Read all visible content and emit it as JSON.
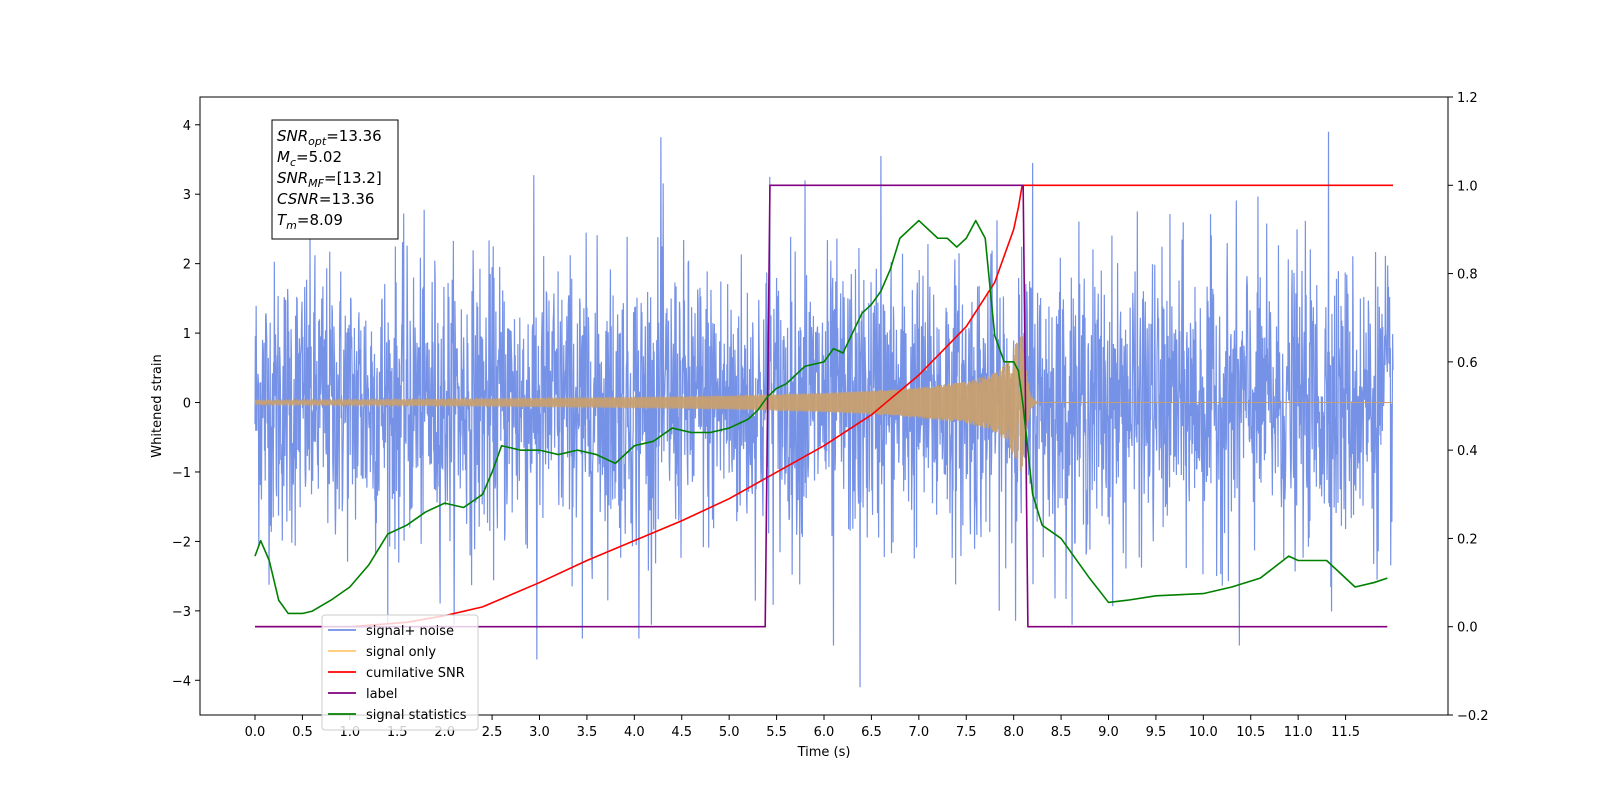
{
  "chart_data": {
    "type": "line",
    "xlabel": "Time (s)",
    "ylabel": "Whitened strain",
    "xlim": [
      -0.58,
      12.58
    ],
    "ylim_left": [
      -4.5,
      4.4
    ],
    "ylim_right": [
      -0.2,
      1.2
    ],
    "x_ticks": [
      "0.0",
      "0.5",
      "1.0",
      "1.5",
      "2.0",
      "2.5",
      "3.0",
      "3.5",
      "4.0",
      "4.5",
      "5.0",
      "5.5",
      "6.0",
      "6.5",
      "7.0",
      "7.5",
      "8.0",
      "8.5",
      "9.0",
      "9.5",
      "10.0",
      "10.5",
      "11.0",
      "11.5"
    ],
    "y_ticks_left": [
      "4",
      "3",
      "2",
      "1",
      "0",
      "−1",
      "−2",
      "−3",
      "−4"
    ],
    "y_ticks_right": [
      "1.2",
      "1.0",
      "0.8",
      "0.6",
      "0.4",
      "0.2",
      "0.0",
      "−0.2"
    ],
    "annotation": {
      "lines": [
        {
          "sym": "SNR",
          "sub": "opt",
          "rest": "=13.36"
        },
        {
          "sym": "M",
          "sub": "c",
          "rest": "=5.02"
        },
        {
          "sym": "SNR",
          "sub": "MF",
          "rest": "=[13.2]"
        },
        {
          "sym": "CSNR",
          "sub": "",
          "rest": "=13.36"
        },
        {
          "sym": "T",
          "sub": "m",
          "rest": "=8.09"
        }
      ]
    },
    "legend": {
      "placement": "lower-left",
      "entries": [
        {
          "label": "signal+ noise",
          "color": "#6f8ce6"
        },
        {
          "label": "signal only",
          "color": "#ffc870"
        },
        {
          "label": "cumilative SNR",
          "color": "#ff0000"
        },
        {
          "label": "label",
          "color": "#800080"
        },
        {
          "label": "signal statistics",
          "color": "#008000"
        }
      ]
    },
    "series": [
      {
        "name": "signal+ noise",
        "axis": "left",
        "color": "#6f8ce6",
        "x_range": [
          0.0,
          12.0
        ],
        "kind": "noise",
        "std": 1.0,
        "extremes": [
          [
            4.28,
            3.82
          ],
          [
            11.32,
            3.9
          ],
          [
            6.38,
            -4.1
          ],
          [
            2.97,
            -3.7
          ],
          [
            3.45,
            -3.4
          ],
          [
            10.38,
            -3.5
          ],
          [
            4.05,
            -3.4
          ],
          [
            6.1,
            -3.5
          ],
          [
            5.43,
            3.25
          ],
          [
            6.6,
            3.55
          ],
          [
            8.2,
            3.45
          ],
          [
            5.8,
            3.2
          ]
        ]
      },
      {
        "name": "signal only",
        "axis": "left",
        "color": "#c8a070",
        "kind": "chirp",
        "x_range": [
          0.0,
          12.0
        ],
        "merger_time": 8.09,
        "envelope": [
          [
            0.0,
            0.03
          ],
          [
            1.0,
            0.04
          ],
          [
            2.0,
            0.05
          ],
          [
            3.0,
            0.065
          ],
          [
            4.0,
            0.08
          ],
          [
            5.0,
            0.1
          ],
          [
            5.5,
            0.12
          ],
          [
            6.0,
            0.14
          ],
          [
            6.5,
            0.17
          ],
          [
            7.0,
            0.22
          ],
          [
            7.5,
            0.3
          ],
          [
            7.8,
            0.42
          ],
          [
            7.95,
            0.6
          ],
          [
            8.05,
            0.95
          ],
          [
            8.09,
            1.05
          ],
          [
            8.12,
            0.6
          ],
          [
            8.18,
            0.1
          ],
          [
            8.25,
            0.0
          ]
        ]
      },
      {
        "name": "cumilative SNR",
        "axis": "right",
        "color": "#ff0000",
        "x": [
          0.0,
          1.0,
          1.6,
          2.0,
          2.4,
          3.0,
          3.5,
          4.0,
          4.5,
          5.0,
          5.5,
          6.0,
          6.5,
          7.0,
          7.5,
          7.8,
          8.0,
          8.05,
          8.09,
          8.1,
          12.0
        ],
        "y": [
          0.0,
          0.0,
          0.01,
          0.025,
          0.045,
          0.1,
          0.15,
          0.195,
          0.24,
          0.29,
          0.35,
          0.41,
          0.48,
          0.57,
          0.68,
          0.78,
          0.9,
          0.95,
          1.0,
          1.0,
          1.0
        ]
      },
      {
        "name": "label",
        "axis": "right",
        "color": "#800080",
        "x": [
          0.0,
          5.38,
          5.43,
          8.1,
          8.15,
          11.94
        ],
        "y": [
          0.0,
          0.0,
          1.0,
          1.0,
          0.0,
          0.0
        ]
      },
      {
        "name": "signal statistics",
        "axis": "right",
        "color": "#008000",
        "x": [
          0.0,
          0.06,
          0.15,
          0.25,
          0.35,
          0.5,
          0.6,
          0.8,
          1.0,
          1.2,
          1.4,
          1.6,
          1.8,
          2.0,
          2.2,
          2.4,
          2.5,
          2.6,
          2.8,
          3.0,
          3.2,
          3.4,
          3.6,
          3.8,
          4.0,
          4.2,
          4.4,
          4.6,
          4.8,
          5.0,
          5.2,
          5.3,
          5.4,
          5.5,
          5.6,
          5.7,
          5.8,
          6.0,
          6.1,
          6.2,
          6.4,
          6.5,
          6.6,
          6.7,
          6.8,
          7.0,
          7.2,
          7.3,
          7.4,
          7.5,
          7.6,
          7.7,
          7.8,
          7.9,
          8.0,
          8.05,
          8.1,
          8.2,
          8.3,
          8.5,
          8.8,
          9.0,
          9.2,
          9.5,
          10.0,
          10.3,
          10.6,
          10.9,
          11.0,
          11.3,
          11.6,
          11.8,
          11.94
        ],
        "y": [
          0.16,
          0.195,
          0.15,
          0.06,
          0.03,
          0.03,
          0.035,
          0.06,
          0.09,
          0.14,
          0.21,
          0.23,
          0.26,
          0.28,
          0.27,
          0.3,
          0.35,
          0.41,
          0.4,
          0.4,
          0.39,
          0.4,
          0.39,
          0.37,
          0.41,
          0.42,
          0.45,
          0.44,
          0.44,
          0.45,
          0.47,
          0.49,
          0.52,
          0.54,
          0.55,
          0.57,
          0.59,
          0.6,
          0.63,
          0.62,
          0.71,
          0.73,
          0.76,
          0.81,
          0.88,
          0.92,
          0.88,
          0.88,
          0.86,
          0.88,
          0.92,
          0.88,
          0.66,
          0.6,
          0.6,
          0.58,
          0.5,
          0.3,
          0.23,
          0.2,
          0.11,
          0.055,
          0.06,
          0.07,
          0.075,
          0.09,
          0.11,
          0.16,
          0.15,
          0.15,
          0.09,
          0.1,
          0.11
        ]
      }
    ]
  }
}
